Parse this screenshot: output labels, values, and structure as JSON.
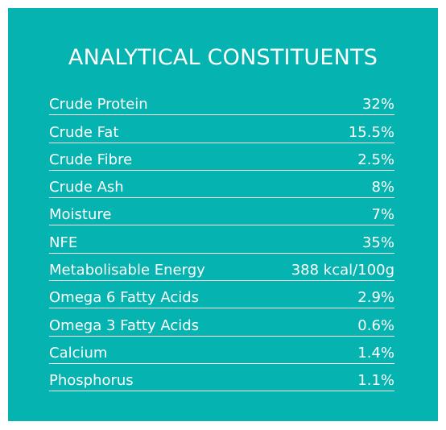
{
  "title": "ANALYTICAL CONSTITUENTS",
  "colors": {
    "panel_background": "#05b3b0",
    "text": "#ffffff",
    "divider": "#ffffff"
  },
  "rows": [
    {
      "label": "Crude Protein",
      "value": "32%"
    },
    {
      "label": "Crude Fat",
      "value": "15.5%"
    },
    {
      "label": "Crude Fibre",
      "value": "2.5%"
    },
    {
      "label": "Crude Ash",
      "value": "8%"
    },
    {
      "label": "Moisture",
      "value": "7%"
    },
    {
      "label": "NFE",
      "value": "35%"
    },
    {
      "label": "Metabolisable Energy",
      "value": "388 kcal/100g"
    },
    {
      "label": "Omega 6 Fatty Acids",
      "value": "2.9%"
    },
    {
      "label": "Omega 3 Fatty Acids",
      "value": "0.6%"
    },
    {
      "label": "Calcium",
      "value": "1.4%"
    },
    {
      "label": "Phosphorus",
      "value": "1.1%"
    }
  ]
}
